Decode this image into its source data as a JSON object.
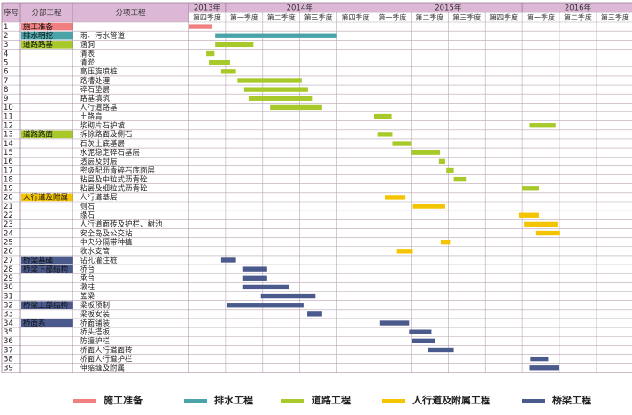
{
  "chart_data": {
    "type": "gantt",
    "headers": {
      "seq": "序号",
      "category": "分部工程",
      "item": "分项工程"
    },
    "years": [
      {
        "label": "2013年",
        "quarters": [
          "第四季度"
        ]
      },
      {
        "label": "2014年",
        "quarters": [
          "第一季度",
          "第二季度",
          "第三季度",
          "第四季度"
        ]
      },
      {
        "label": "2015年",
        "quarters": [
          "第一季度",
          "第二季度",
          "第三季度",
          "第四季度"
        ]
      },
      {
        "label": "2016年",
        "quarters": [
          "第一季度",
          "第二季度",
          "第三季度"
        ]
      }
    ],
    "categories": [
      {
        "key": "sg",
        "name": "施工准备",
        "color": "#f08080"
      },
      {
        "key": "ps",
        "name": "排水工程",
        "color": "#4aa3a8"
      },
      {
        "key": "dl",
        "name": "道路工程",
        "color": "#a8c92a"
      },
      {
        "key": "rx",
        "name": "人行道及附属工程",
        "color": "#f5c400"
      },
      {
        "key": "ql",
        "name": "桥梁工程",
        "color": "#4a5a8c"
      }
    ],
    "rows": [
      {
        "no": "1",
        "group": "施工准备",
        "group_key": "sg",
        "item": "",
        "cat": "sg",
        "start": 0.0,
        "end": 0.62
      },
      {
        "no": "2",
        "group": "排水明挖",
        "group_key": "ps",
        "item": "雨、污水管道",
        "cat": "ps",
        "start": 0.72,
        "end": 4.0
      },
      {
        "no": "3",
        "group": "道路路基",
        "group_key": "dl",
        "item": "涵洞",
        "cat": "dl",
        "start": 0.72,
        "end": 1.75
      },
      {
        "no": "4",
        "group": "",
        "group_key": "",
        "item": "清表",
        "cat": "dl",
        "start": 0.48,
        "end": 0.7
      },
      {
        "no": "5",
        "group": "",
        "group_key": "",
        "item": "清淤",
        "cat": "dl",
        "start": 0.55,
        "end": 1.12
      },
      {
        "no": "6",
        "group": "",
        "group_key": "",
        "item": "高压旋喷桩",
        "cat": "dl",
        "start": 0.88,
        "end": 1.28
      },
      {
        "no": "7",
        "group": "",
        "group_key": "",
        "item": "路槽处理",
        "cat": "dl",
        "start": 1.32,
        "end": 3.05
      },
      {
        "no": "8",
        "group": "",
        "group_key": "",
        "item": "碎石垫层",
        "cat": "dl",
        "start": 1.5,
        "end": 3.22
      },
      {
        "no": "9",
        "group": "",
        "group_key": "",
        "item": "路基填筑",
        "cat": "dl",
        "start": 1.62,
        "end": 3.35
      },
      {
        "no": "10",
        "group": "",
        "group_key": "",
        "item": "人行道路基",
        "cat": "dl",
        "start": 2.2,
        "end": 3.6
      },
      {
        "no": "11",
        "group": "",
        "group_key": "",
        "item": "土路肩",
        "cat": "dl",
        "start": 5.0,
        "end": 5.48
      },
      {
        "no": "12",
        "group": "",
        "group_key": "",
        "item": "浆砌片石护坡",
        "cat": "dl",
        "start": 9.2,
        "end": 9.9
      },
      {
        "no": "13",
        "group": "道路路面",
        "group_key": "dl",
        "item": "拆除路面及侧石",
        "cat": "dl",
        "start": 5.1,
        "end": 5.5
      },
      {
        "no": "14",
        "group": "",
        "group_key": "",
        "item": "石灰土底基层",
        "cat": "dl",
        "start": 5.5,
        "end": 6.0
      },
      {
        "no": "15",
        "group": "",
        "group_key": "",
        "item": "水泥稳定碎石基层",
        "cat": "dl",
        "start": 6.0,
        "end": 6.78
      },
      {
        "no": "16",
        "group": "",
        "group_key": "",
        "item": "透层及封层",
        "cat": "dl",
        "start": 6.75,
        "end": 6.92
      },
      {
        "no": "17",
        "group": "",
        "group_key": "",
        "item": "密级配沥青碎石底面层",
        "cat": "dl",
        "start": 6.95,
        "end": 7.15
      },
      {
        "no": "18",
        "group": "",
        "group_key": "",
        "item": "粘层及中粒式沥青砼",
        "cat": "dl",
        "start": 7.15,
        "end": 7.5
      },
      {
        "no": "19",
        "group": "",
        "group_key": "",
        "item": "粘层及细粒式沥青砼",
        "cat": "dl",
        "start": 9.0,
        "end": 9.45
      },
      {
        "no": "20",
        "group": "人行道及附属",
        "group_key": "rx",
        "item": "人行道基层",
        "cat": "rx",
        "start": 5.3,
        "end": 5.85
      },
      {
        "no": "21",
        "group": "",
        "group_key": "",
        "item": "侧石",
        "cat": "rx",
        "start": 6.05,
        "end": 6.92
      },
      {
        "no": "22",
        "group": "",
        "group_key": "",
        "item": "缘石",
        "cat": "rx",
        "start": 8.9,
        "end": 9.45
      },
      {
        "no": "23",
        "group": "",
        "group_key": "",
        "item": "人行道面砖及护栏、树池",
        "cat": "rx",
        "start": 9.05,
        "end": 9.95
      },
      {
        "no": "24",
        "group": "",
        "group_key": "",
        "item": "安全岛及公交站",
        "cat": "rx",
        "start": 9.35,
        "end": 10.02
      },
      {
        "no": "25",
        "group": "",
        "group_key": "",
        "item": "中央分隔带种植",
        "cat": "rx",
        "start": 6.8,
        "end": 7.05
      },
      {
        "no": "26",
        "group": "",
        "group_key": "",
        "item": "收水支管",
        "cat": "rx",
        "start": 5.6,
        "end": 6.05
      },
      {
        "no": "27",
        "group": "桥梁基础",
        "group_key": "ql",
        "item": "钻孔灌注桩",
        "cat": "ql",
        "start": 0.88,
        "end": 1.28
      },
      {
        "no": "28",
        "group": "桥梁下部结构",
        "group_key": "ql",
        "item": "桥台",
        "cat": "ql",
        "start": 1.45,
        "end": 2.12
      },
      {
        "no": "29",
        "group": "",
        "group_key": "",
        "item": "承台",
        "cat": "ql",
        "start": 1.45,
        "end": 2.12
      },
      {
        "no": "30",
        "group": "",
        "group_key": "",
        "item": "墩柱",
        "cat": "ql",
        "start": 1.45,
        "end": 2.72
      },
      {
        "no": "31",
        "group": "",
        "group_key": "",
        "item": "盖梁",
        "cat": "ql",
        "start": 1.95,
        "end": 3.42
      },
      {
        "no": "32",
        "group": "桥梁上部结构",
        "group_key": "ql",
        "item": "梁板预制",
        "cat": "ql",
        "start": 1.05,
        "end": 3.1
      },
      {
        "no": "33",
        "group": "",
        "group_key": "",
        "item": "梁板安装",
        "cat": "ql",
        "start": 3.2,
        "end": 3.6
      },
      {
        "no": "34",
        "group": "桥面系",
        "group_key": "ql",
        "item": "桥面铺装",
        "cat": "ql",
        "start": 5.15,
        "end": 5.95
      },
      {
        "no": "35",
        "group": "",
        "group_key": "",
        "item": "桥头搭板",
        "cat": "ql",
        "start": 5.95,
        "end": 6.55
      },
      {
        "no": "36",
        "group": "",
        "group_key": "",
        "item": "防撞护栏",
        "cat": "ql",
        "start": 6.02,
        "end": 6.65
      },
      {
        "no": "37",
        "group": "",
        "group_key": "",
        "item": "桥面人行道面砖",
        "cat": "ql",
        "start": 6.45,
        "end": 7.15
      },
      {
        "no": "38",
        "group": "",
        "group_key": "",
        "item": "桥面人行道护栏",
        "cat": "ql",
        "start": 9.22,
        "end": 9.7
      },
      {
        "no": "39",
        "group": "",
        "group_key": "",
        "item": "伸缩缝及附属",
        "cat": "ql",
        "start": 9.2,
        "end": 10.0
      }
    ]
  }
}
